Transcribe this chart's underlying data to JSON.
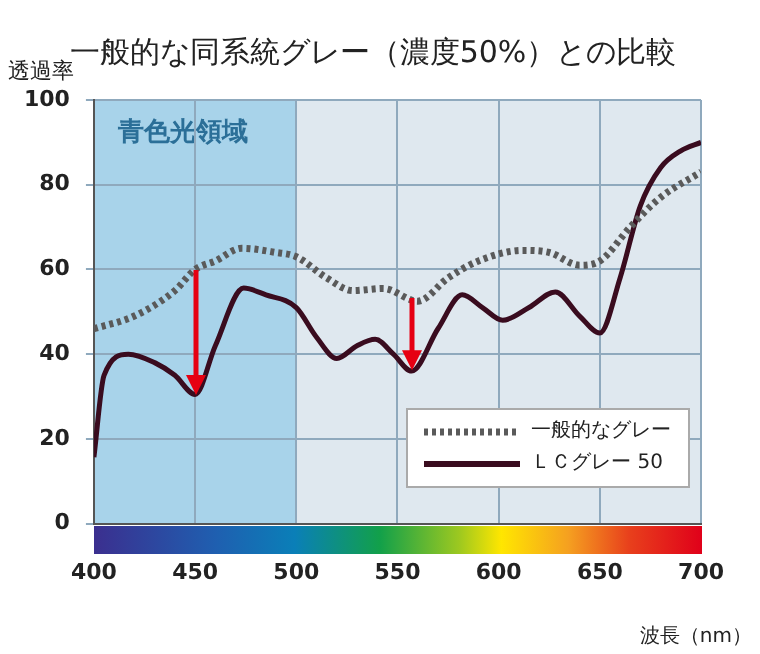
{
  "chart_data": {
    "type": "line",
    "title": "一般的な同系統グレー（濃度50%）との比較",
    "ylabel": "透過率",
    "xlabel": "波長（nm）",
    "xlim": [
      400,
      700
    ],
    "xticks": [
      400,
      450,
      500,
      550,
      600,
      650,
      700
    ],
    "ylim": [
      0,
      100
    ],
    "yticks": [
      0,
      20,
      40,
      60,
      80,
      100
    ],
    "grid": true,
    "legend": "bottom right",
    "marker": "none",
    "bands": [
      {
        "axis": "x",
        "from": 400,
        "to": 500,
        "label": "青色光領域",
        "color": "#a8d3ea"
      }
    ],
    "series": [
      {
        "name": "一般的なグレー",
        "color": "#5a5a5a",
        "line_style": "dotted",
        "x": [
          400,
          420,
          440,
          450,
          460,
          473,
          490,
          500,
          515,
          528,
          543,
          560,
          575,
          590,
          612,
          625,
          640,
          650,
          665,
          680,
          700
        ],
        "values": [
          46,
          49,
          55,
          60,
          62,
          65,
          64,
          63,
          58,
          55,
          55.5,
          52.5,
          58,
          62,
          64.5,
          64,
          61,
          62,
          70,
          77,
          83
        ]
      },
      {
        "name": "ＬＣグレー 50",
        "color": "#3a0c1f",
        "line_style": "solid",
        "x": [
          400,
          405,
          417,
          430,
          440,
          450,
          460,
          474,
          485,
          500,
          510,
          520,
          530,
          539,
          548,
          557,
          570,
          582,
          592,
          602,
          615,
          628,
          640,
          650,
          660,
          670,
          680,
          690,
          700
        ],
        "values": [
          15.7,
          35,
          40,
          38,
          35,
          30.5,
          42,
          55.6,
          54,
          51,
          44,
          39,
          42,
          43.5,
          40,
          36,
          46,
          54,
          51,
          48,
          51,
          54.7,
          49,
          45,
          58,
          75,
          84,
          88,
          90
        ]
      }
    ]
  }
}
